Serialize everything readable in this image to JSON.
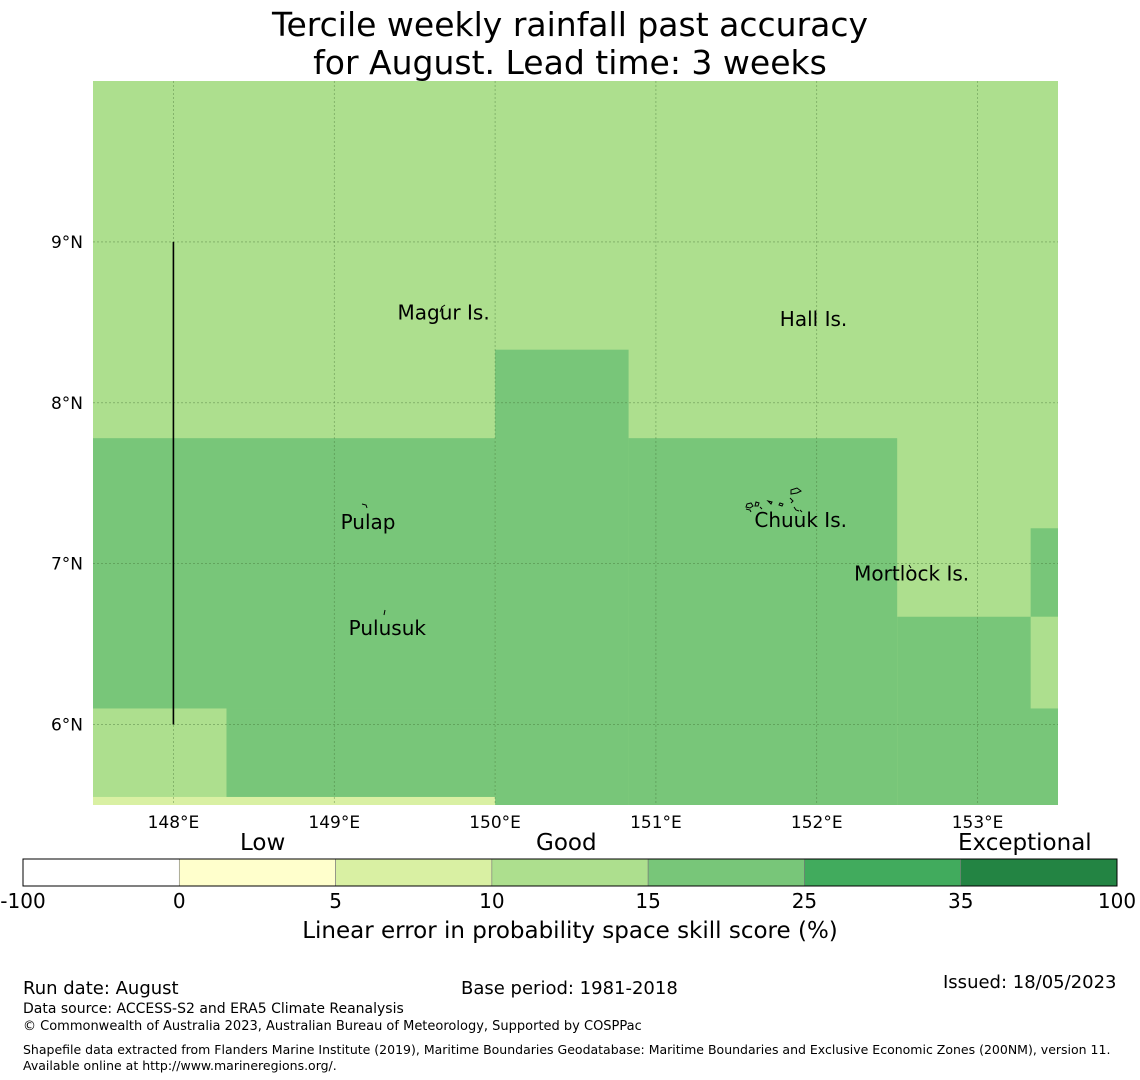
{
  "title": {
    "line1": "Tercile weekly rainfall past accuracy",
    "line2": "for August. Lead time: 3 weeks"
  },
  "map": {
    "lon_range": [
      147.5,
      153.5
    ],
    "lat_range": [
      5.5,
      10.0
    ],
    "lon_ticks": [
      {
        "value": 148,
        "label": "148°E"
      },
      {
        "value": 149,
        "label": "149°E"
      },
      {
        "value": 150,
        "label": "150°E"
      },
      {
        "value": 151,
        "label": "151°E"
      },
      {
        "value": 152,
        "label": "152°E"
      },
      {
        "value": 153,
        "label": "153°E"
      }
    ],
    "lat_ticks": [
      {
        "value": 9,
        "label": "9°N"
      },
      {
        "value": 8,
        "label": "8°N"
      },
      {
        "value": 7,
        "label": "7°N"
      },
      {
        "value": 6,
        "label": "6°N"
      }
    ],
    "cells": [
      {
        "lon0": 147.5,
        "lon1": 153.5,
        "lat0": 5.5,
        "lat1": 10.0,
        "color": "#addf8e"
      },
      {
        "lon0": 147.5,
        "lon1": 150.0,
        "lat0": 6.1,
        "lat1": 7.78,
        "color": "#78c679"
      },
      {
        "lon0": 148.33,
        "lon1": 150.0,
        "lat0": 5.5,
        "lat1": 6.1,
        "color": "#78c679"
      },
      {
        "lon0": 150.0,
        "lon1": 150.83,
        "lat0": 5.5,
        "lat1": 8.33,
        "color": "#78c679"
      },
      {
        "lon0": 150.83,
        "lon1": 152.5,
        "lat0": 5.5,
        "lat1": 7.78,
        "color": "#78c679"
      },
      {
        "lon0": 152.5,
        "lon1": 153.5,
        "lat0": 5.5,
        "lat1": 6.67,
        "color": "#78c679"
      },
      {
        "lon0": 153.33,
        "lon1": 153.5,
        "lat0": 6.67,
        "lat1": 7.22,
        "color": "#78c679"
      },
      {
        "lon0": 153.33,
        "lon1": 153.5,
        "lat0": 6.1,
        "lat1": 6.67,
        "color": "#addf8e"
      },
      {
        "lon0": 147.5,
        "lon1": 150.0,
        "lat0": 5.5,
        "lat1": 5.55,
        "color": "#d9f0a3"
      }
    ],
    "boundary_line": {
      "lon": 148.0,
      "lat0": 6.0,
      "lat1": 9.0
    },
    "places": [
      {
        "name": "Magur Is.",
        "lon": 149.68,
        "lat": 8.56
      },
      {
        "name": "Hall Is.",
        "lon": 151.98,
        "lat": 8.52
      },
      {
        "name": "Pulap",
        "lon": 149.21,
        "lat": 7.26
      },
      {
        "name": "Chuuk Is.",
        "lon": 151.9,
        "lat": 7.27
      },
      {
        "name": "Mortlock Is.",
        "lon": 152.59,
        "lat": 6.94
      },
      {
        "name": "Pulusuk",
        "lon": 149.33,
        "lat": 6.6
      }
    ]
  },
  "colorbar": {
    "categories": [
      "Low",
      "Good",
      "Exceptional"
    ],
    "ticks": [
      "-100",
      "0",
      "5",
      "10",
      "15",
      "25",
      "35",
      "100"
    ],
    "colors": [
      "#ffffff",
      "#ffffcc",
      "#d9f0a3",
      "#addf8e",
      "#78c679",
      "#41ab5d",
      "#238443"
    ],
    "label": "Linear error in probability space skill score (%)"
  },
  "footer": {
    "run_date": "Run date: August",
    "base_period": "Base period: 1981-2018",
    "issued": "Issued: 18/05/2023",
    "data_source": "Data source: ACCESS-S2 and ERA5 Climate Reanalysis",
    "copyright": "© Commonwealth of Australia 2023, Australian Bureau of Meteorology, Supported by COSPPac",
    "shapefile": "Shapefile data extracted from Flanders Marine Institute (2019), Maritime Boundaries Geodatabase: Maritime Boundaries and Exclusive Economic Zones (200NM), version 11. Available online at http://www.marineregions.org/."
  }
}
